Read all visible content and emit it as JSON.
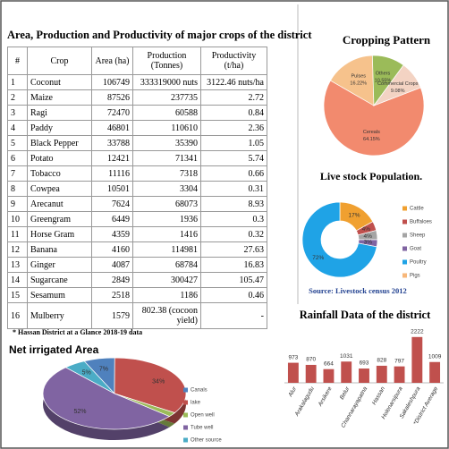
{
  "title": "Area, Production and Productivity of major crops of the district",
  "table": {
    "header": [
      "#",
      "Crop",
      "Area (ha)",
      "Production (Tonnes)",
      "Productivity (t/ha)"
    ],
    "rows": [
      [
        "1",
        "Coconut",
        "106749",
        "333319000 nuts",
        "3122.46 nuts/ha"
      ],
      [
        "2",
        "Maize",
        "87526",
        "237735",
        "2.72"
      ],
      [
        "3",
        "Ragi",
        "72470",
        "60588",
        "0.84"
      ],
      [
        "4",
        "Paddy",
        "46801",
        "110610",
        "2.36"
      ],
      [
        "5",
        "Black Pepper",
        "33788",
        "35390",
        "1.05"
      ],
      [
        "6",
        "Potato",
        "12421",
        "71341",
        "5.74"
      ],
      [
        "7",
        "Tobacco",
        "11116",
        "7318",
        "0.66"
      ],
      [
        "8",
        "Cowpea",
        "10501",
        "3304",
        "0.31"
      ],
      [
        "9",
        "Arecanut",
        "7624",
        "68073",
        "8.93"
      ],
      [
        "10",
        "Greengram",
        "6449",
        "1936",
        "0.3"
      ],
      [
        "11",
        "Horse Gram",
        "4359",
        "1416",
        "0.32"
      ],
      [
        "12",
        "Banana",
        "4160",
        "114981",
        "27.63"
      ],
      [
        "13",
        "Ginger",
        "4087",
        "68784",
        "16.83"
      ],
      [
        "14",
        "Sugarcane",
        "2849",
        "300427",
        "105.47"
      ],
      [
        "15",
        "Sesamum",
        "2518",
        "1186",
        "0.46"
      ],
      [
        "16",
        "Mulberry",
        "1579",
        "802.38 (cocoon yield)",
        "-"
      ]
    ]
  },
  "note": "* Hassan District at a Glance 2018-19 data",
  "chart_data": [
    {
      "type": "pie",
      "title": "Cropping  Pattern",
      "categories": [
        "Cereals",
        "Pulses",
        "Others",
        "Commercial Crops"
      ],
      "values": [
        64.15,
        16.22,
        10.55,
        9.08
      ],
      "value_labels": [
        "64.15%",
        "16.22%",
        "10.55%",
        "9.08%"
      ],
      "colors": [
        "#f28a6e",
        "#f6c28c",
        "#9bbb59",
        "#f3d3c3"
      ]
    },
    {
      "type": "donut",
      "title": "Live stock Population.",
      "source": "Source: Livestock census 2012",
      "categories": [
        "Cattle",
        "Buffaloes",
        "Sheep",
        "Goat",
        "Poultry",
        "Pigs"
      ],
      "values": [
        17,
        4,
        4,
        3,
        72,
        0
      ],
      "value_labels": [
        "17%",
        "4%",
        "4%",
        "3%",
        "72%",
        null
      ],
      "colors": [
        "#f0a030",
        "#c0504d",
        "#a5a5a5",
        "#8064a2",
        "#1fa3e6",
        "#f7b77a"
      ],
      "legend": "right"
    },
    {
      "type": "bar",
      "title": "Rainfall Data of the district",
      "categories": [
        "Alur",
        "Arakalagudu",
        "Arsikere",
        "Belur",
        "Channarayapatna",
        "Hassan",
        "Holenarsipura",
        "Sakaleshpura",
        "*District Average"
      ],
      "values": [
        973,
        870,
        664,
        1031,
        693,
        828,
        797,
        2222,
        1009
      ],
      "color": "#c0504d",
      "ylim": [
        0,
        2300
      ]
    },
    {
      "type": "pie3d",
      "title": "Net irrigated Area",
      "categories": [
        "Canals",
        "lake",
        "Open well",
        "Tube well",
        "Other source"
      ],
      "values": [
        7,
        34,
        2,
        52,
        5
      ],
      "value_labels": [
        "7%",
        "34%",
        null,
        "52%",
        "5%"
      ],
      "colors": [
        "#4f81bd",
        "#c0504d",
        "#9bbb59",
        "#8064a2",
        "#4bacc6"
      ],
      "legend": "right"
    }
  ]
}
